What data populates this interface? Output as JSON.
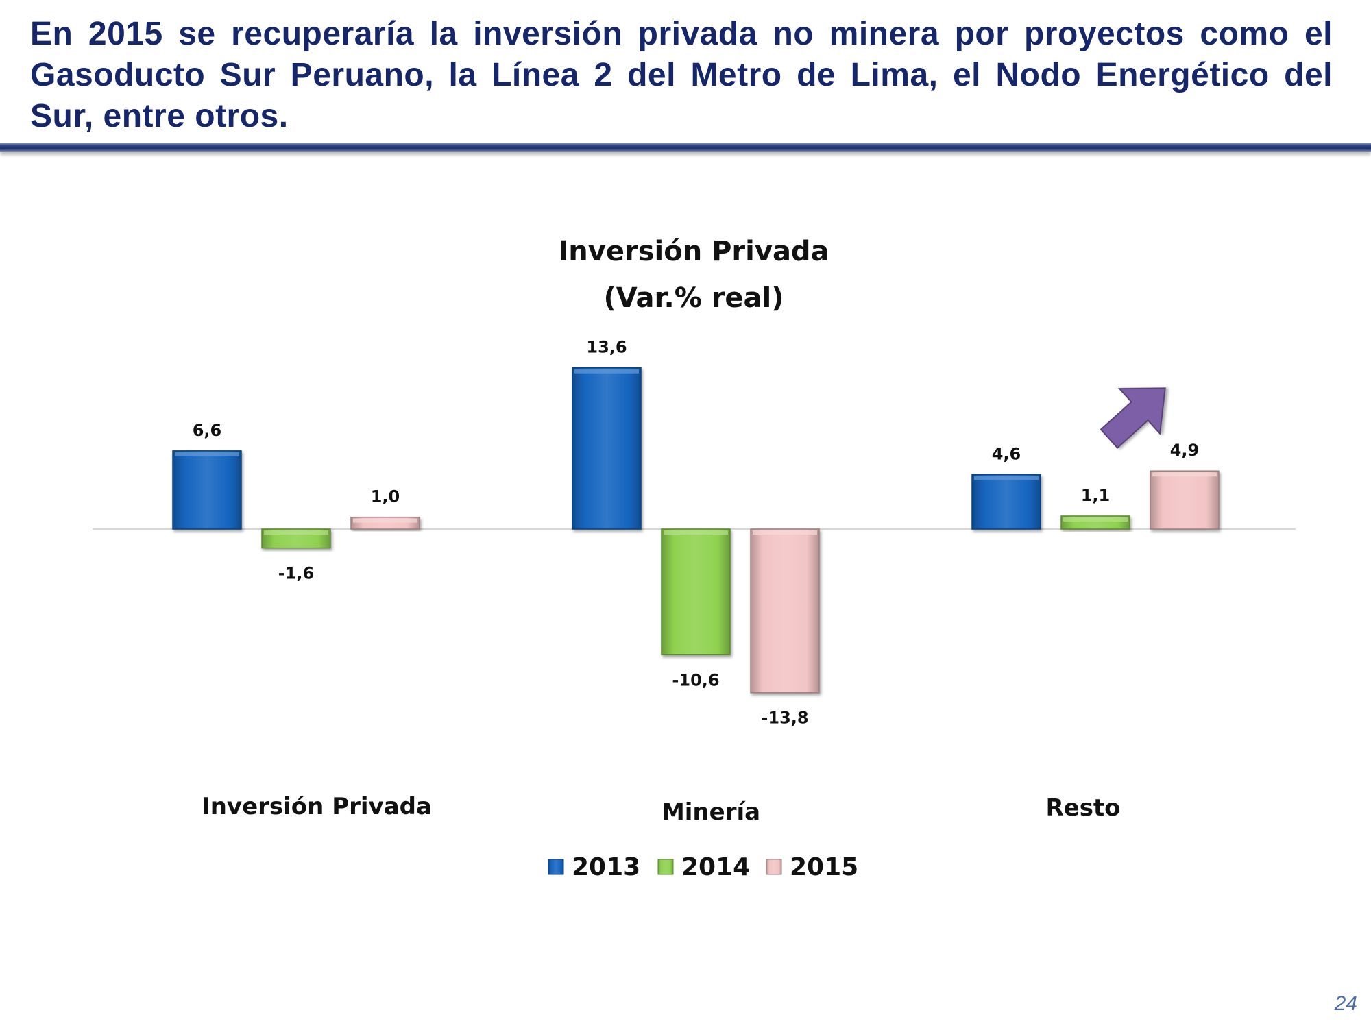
{
  "header": {
    "headline": "En 2015 se recuperaría la inversión privada no minera por proyectos como el Gasoducto Sur Peruano, la Línea 2 del Metro de Lima, el Nodo Energético del Sur, entre otros."
  },
  "page_number": "24",
  "chart_data": {
    "type": "bar",
    "title": "Inversión Privada",
    "subtitle": "(Var.% real)",
    "categories": [
      "Inversión Privada",
      "Minería",
      "Resto"
    ],
    "series": [
      {
        "name": "2013",
        "values": [
          6.6,
          13.6,
          4.6
        ],
        "labels": [
          "6,6",
          "13,6",
          "4,6"
        ],
        "color": "#1565c0"
      },
      {
        "name": "2014",
        "values": [
          -1.6,
          -10.6,
          1.1
        ],
        "labels": [
          "-1,6",
          "-10,6",
          "1,1"
        ],
        "color": "#8fd14f"
      },
      {
        "name": "2015",
        "values": [
          1.0,
          -13.8,
          4.9
        ],
        "labels": [
          "1,0",
          "-13,8",
          "4,9"
        ],
        "color": "#f2c4c4"
      }
    ],
    "ylim": [
      -15,
      15
    ],
    "grid": false,
    "legend_position": "bottom",
    "annotation": {
      "type": "arrow",
      "icon": "up-right-arrow-icon",
      "color": "#7b5ea7",
      "near": "Resto 2015"
    }
  }
}
